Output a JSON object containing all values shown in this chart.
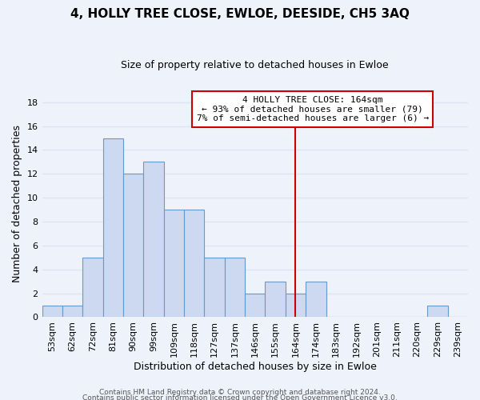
{
  "title": "4, HOLLY TREE CLOSE, EWLOE, DEESIDE, CH5 3AQ",
  "subtitle": "Size of property relative to detached houses in Ewloe",
  "xlabel": "Distribution of detached houses by size in Ewloe",
  "ylabel": "Number of detached properties",
  "bin_labels": [
    "53sqm",
    "62sqm",
    "72sqm",
    "81sqm",
    "90sqm",
    "99sqm",
    "109sqm",
    "118sqm",
    "127sqm",
    "137sqm",
    "146sqm",
    "155sqm",
    "164sqm",
    "174sqm",
    "183sqm",
    "192sqm",
    "201sqm",
    "211sqm",
    "220sqm",
    "229sqm",
    "239sqm"
  ],
  "bar_heights": [
    1,
    1,
    5,
    15,
    12,
    13,
    9,
    9,
    5,
    5,
    2,
    3,
    2,
    3,
    0,
    0,
    0,
    0,
    0,
    1,
    0
  ],
  "bar_color": "#ccd9f0",
  "bar_edge_color": "#6699cc",
  "vline_x_index": 12,
  "vline_color": "#cc0000",
  "ylim": [
    0,
    19
  ],
  "yticks": [
    0,
    2,
    4,
    6,
    8,
    10,
    12,
    14,
    16,
    18
  ],
  "annotation_title": "4 HOLLY TREE CLOSE: 164sqm",
  "annotation_line1": "← 93% of detached houses are smaller (79)",
  "annotation_line2": "7% of semi-detached houses are larger (6) →",
  "annotation_box_color": "#ffffff",
  "annotation_box_edge": "#cc0000",
  "footer_line1": "Contains HM Land Registry data © Crown copyright and database right 2024.",
  "footer_line2": "Contains public sector information licensed under the Open Government Licence v3.0.",
  "background_color": "#eef2fa",
  "grid_color": "#dde5f5",
  "title_fontsize": 11,
  "subtitle_fontsize": 9,
  "ylabel_fontsize": 9,
  "xlabel_fontsize": 9,
  "tick_fontsize": 8,
  "annot_fontsize": 8,
  "footer_fontsize": 6.5
}
